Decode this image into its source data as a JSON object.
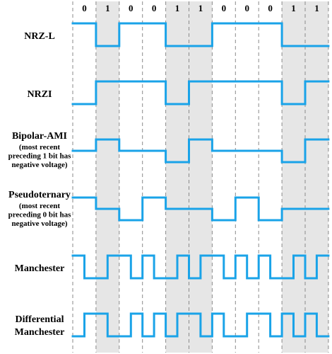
{
  "colors": {
    "signal": "#1aa3e8",
    "shade": "#e6e6e6",
    "grid": "#8a8a8a",
    "text": "#000000"
  },
  "bits": [
    "0",
    "1",
    "0",
    "0",
    "1",
    "1",
    "0",
    "0",
    "0",
    "1",
    "1"
  ],
  "rows": [
    {
      "id": "nrzl",
      "title": "NRZ-L",
      "notes": [],
      "levels": [
        1,
        0,
        1,
        1,
        0,
        0,
        1,
        1,
        1,
        0,
        0
      ]
    },
    {
      "id": "nrzi",
      "title": "NRZI",
      "notes": [],
      "levels": [
        0,
        1,
        1,
        1,
        0,
        1,
        1,
        1,
        1,
        0,
        1
      ]
    },
    {
      "id": "bipolar-ami",
      "title": "Bipolar-AMI",
      "notes": [
        "(most recent",
        "preceding 1 bit has",
        "negative voltage)"
      ],
      "levels": [
        0,
        1,
        0,
        0,
        -1,
        1,
        0,
        0,
        0,
        -1,
        1
      ]
    },
    {
      "id": "pseudoternary",
      "title": "Pseudoternary",
      "notes": [
        "(most recent",
        "preceding 0 bit has",
        "negative voltage)"
      ],
      "levels": [
        1,
        0,
        -1,
        1,
        0,
        0,
        -1,
        1,
        -1,
        0,
        0
      ]
    },
    {
      "id": "manchester",
      "title": "Manchester",
      "notes": [],
      "halves": [
        [
          1,
          0
        ],
        [
          0,
          1
        ],
        [
          1,
          0
        ],
        [
          1,
          0
        ],
        [
          0,
          1
        ],
        [
          0,
          1
        ],
        [
          1,
          0
        ],
        [
          1,
          0
        ],
        [
          1,
          0
        ],
        [
          0,
          1
        ],
        [
          0,
          1
        ]
      ]
    },
    {
      "id": "diff-manchester",
      "title": "Differential Manchester",
      "title_lines": [
        "Differential",
        "Manchester"
      ],
      "notes": [],
      "halves": [
        [
          0,
          1
        ],
        [
          1,
          0
        ],
        [
          0,
          1
        ],
        [
          0,
          1
        ],
        [
          0,
          1
        ],
        [
          1,
          0
        ],
        [
          1,
          0
        ],
        [
          0,
          1
        ],
        [
          1,
          0
        ],
        [
          1,
          0
        ],
        [
          1,
          0
        ]
      ]
    }
  ]
}
